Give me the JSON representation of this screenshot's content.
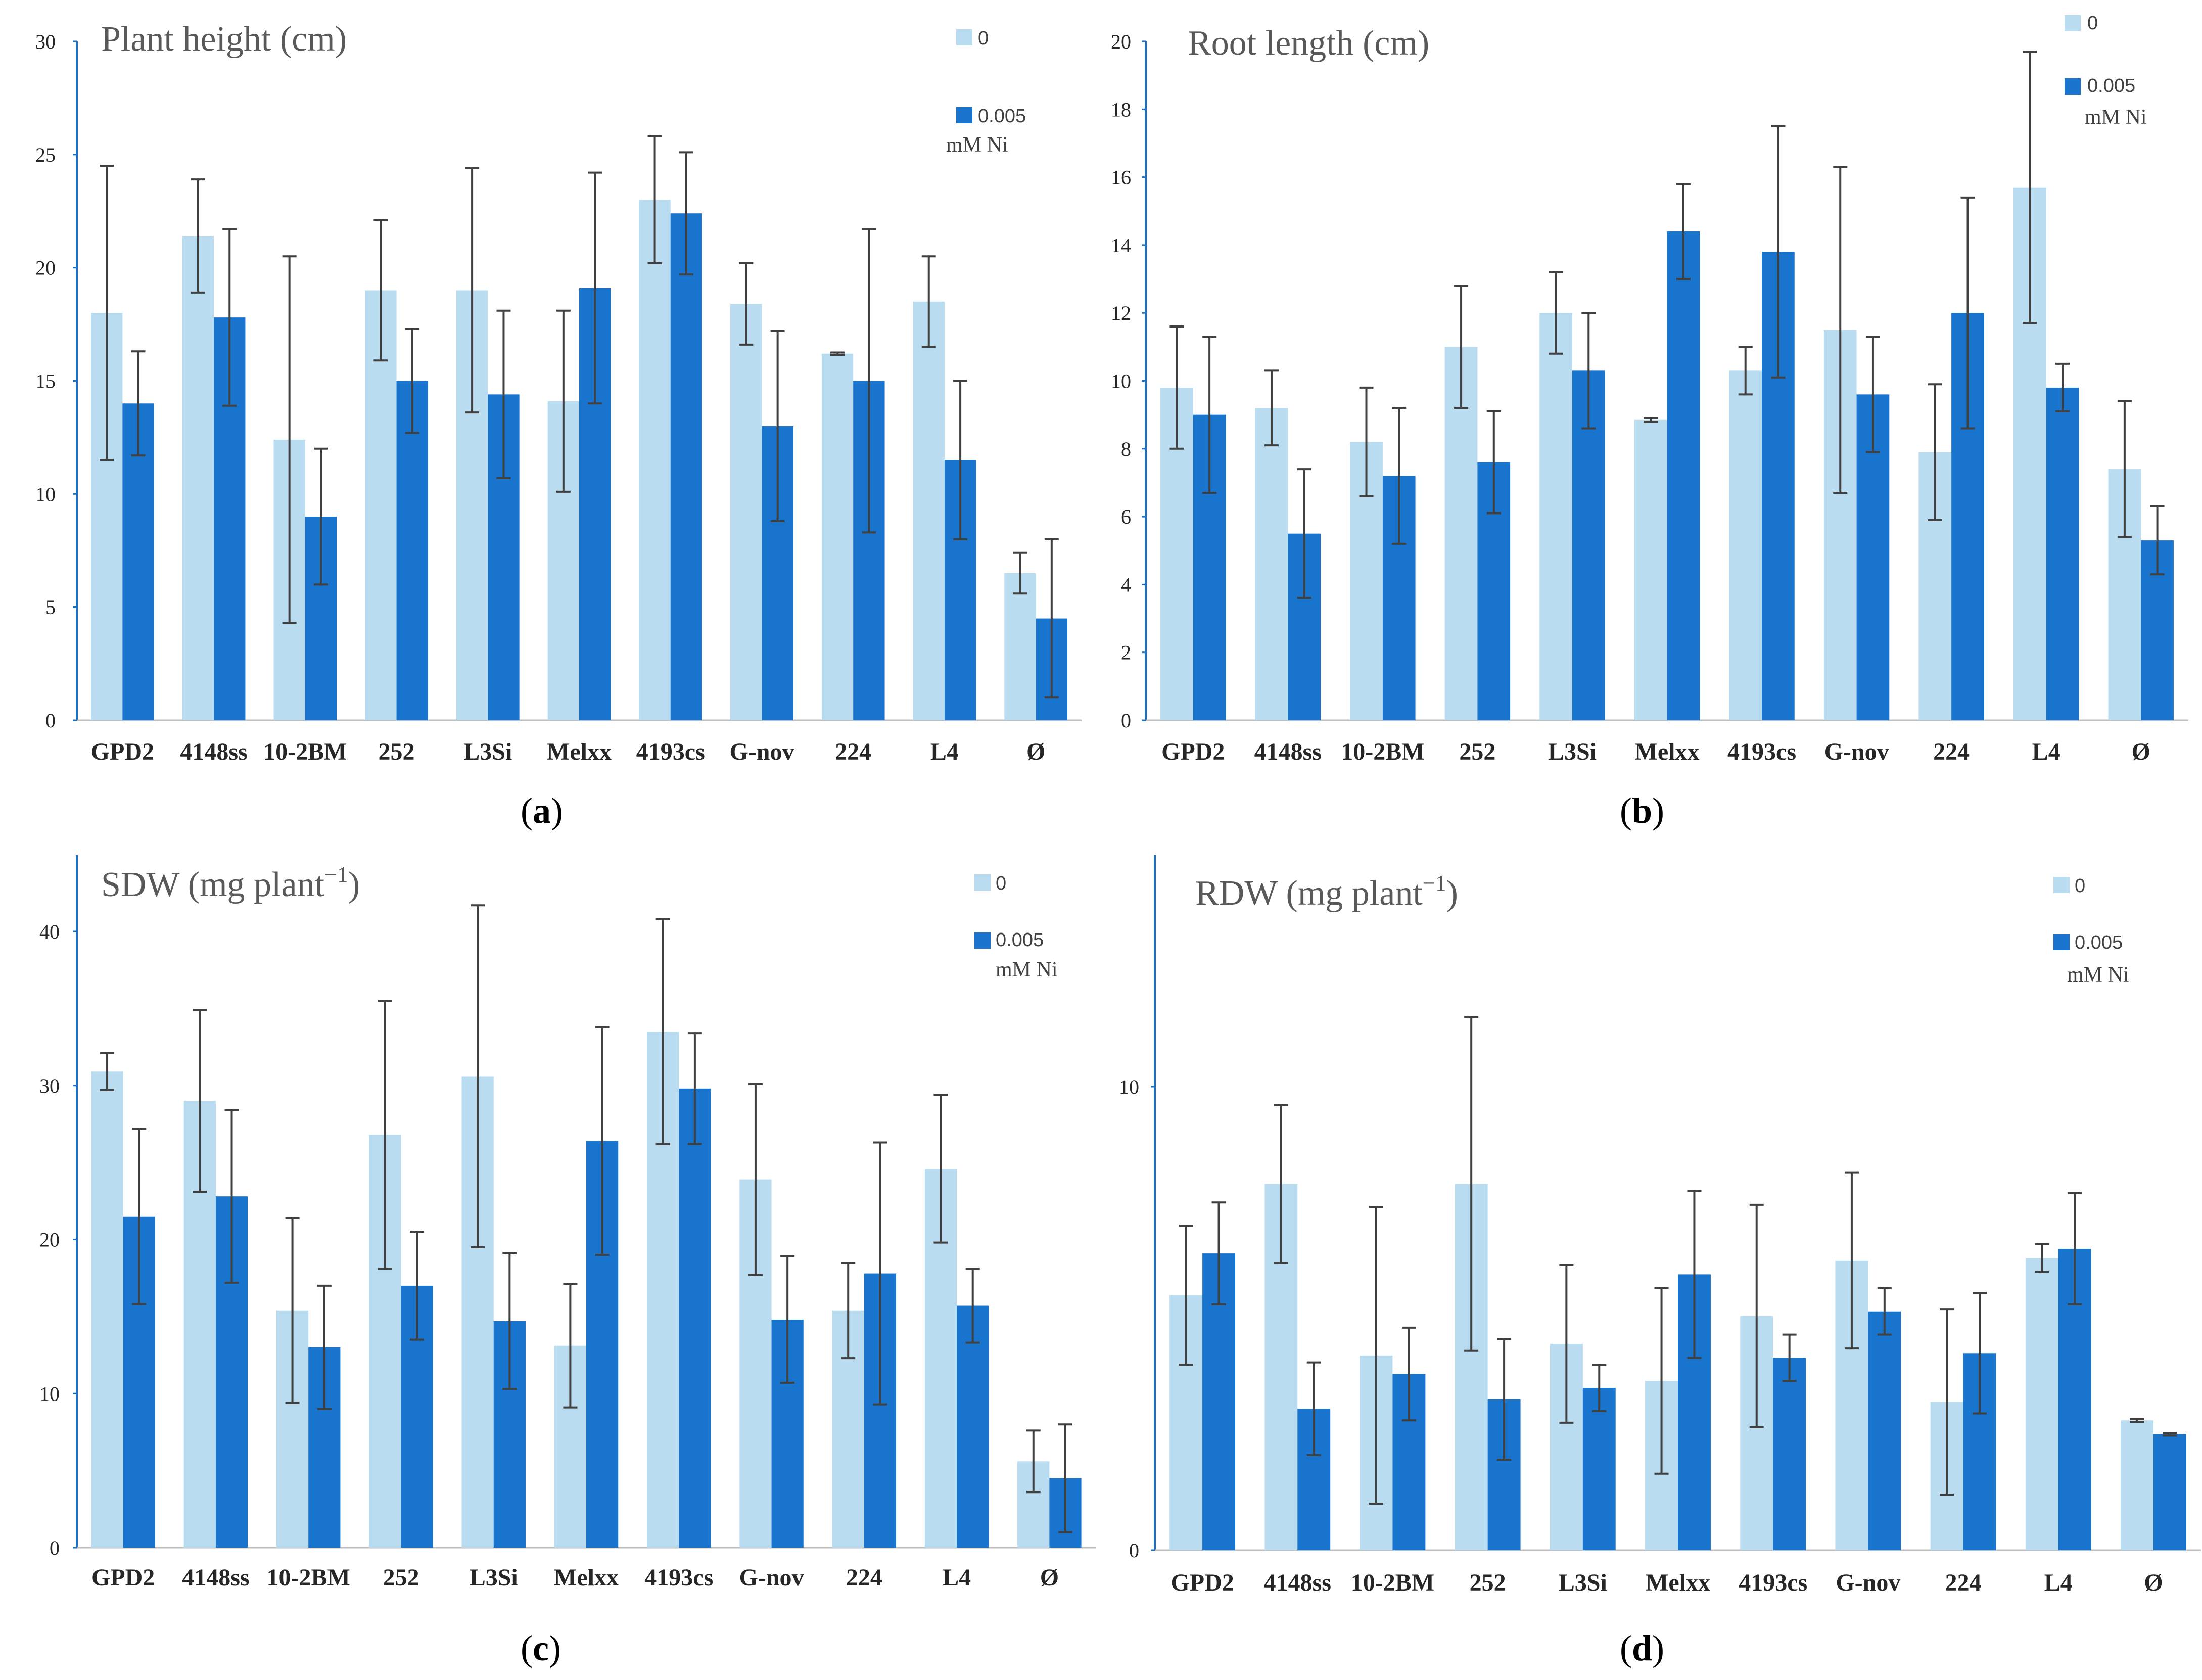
{
  "chart_data": [
    {
      "panel": "(a)",
      "panel_letter": "a",
      "type": "bar",
      "title": "Plant height (cm)",
      "categories": [
        "GPD2",
        "4148ss",
        "10-2BM",
        "252",
        "L3Si",
        "Melxx",
        "4193cs",
        "G-nov",
        "224",
        "L4",
        "Ø"
      ],
      "series": [
        {
          "name": "0",
          "color": "#b9dcf1",
          "values": [
            18.0,
            21.4,
            12.4,
            19.0,
            19.0,
            14.1,
            23.0,
            18.4,
            16.2,
            18.5,
            6.5
          ],
          "errors": [
            6.5,
            2.5,
            8.1,
            3.1,
            5.4,
            4.0,
            2.8,
            1.8,
            0.05,
            2.0,
            0.9
          ]
        },
        {
          "name": "0.005 mM Ni",
          "color": "#1874cd",
          "values": [
            14.0,
            17.8,
            9.0,
            15.0,
            14.4,
            19.1,
            22.4,
            13.0,
            15.0,
            11.5,
            4.5
          ],
          "errors": [
            2.3,
            3.9,
            3.0,
            2.3,
            3.7,
            5.1,
            2.7,
            4.2,
            6.7,
            3.5,
            3.5
          ]
        }
      ],
      "ylim": [
        0,
        30
      ],
      "yticks": [
        "0",
        "5",
        "10",
        "15",
        "20",
        "25",
        "30"
      ],
      "legend": [
        "0",
        "0.005",
        "mM Ni"
      ]
    },
    {
      "panel": "(b)",
      "panel_letter": "b",
      "type": "bar",
      "title": "Root length (cm)",
      "categories": [
        "GPD2",
        "4148ss",
        "10-2BM",
        "252",
        "L3Si",
        "Melxx",
        "4193cs",
        "G-nov",
        "224",
        "L4",
        "Ø"
      ],
      "series": [
        {
          "name": "0",
          "color": "#b9dcf1",
          "values": [
            9.8,
            9.2,
            8.2,
            11.0,
            12.0,
            8.85,
            10.3,
            11.5,
            7.9,
            15.7,
            7.4
          ],
          "errors": [
            1.8,
            1.1,
            1.6,
            1.8,
            1.2,
            0.05,
            0.7,
            4.8,
            2.0,
            4.0,
            2.0
          ]
        },
        {
          "name": "0.005 mM Ni",
          "color": "#1874cd",
          "values": [
            9.0,
            5.5,
            7.2,
            7.6,
            10.3,
            14.4,
            13.8,
            9.6,
            12.0,
            9.8,
            5.3
          ],
          "errors": [
            2.3,
            1.9,
            2.0,
            1.5,
            1.7,
            1.4,
            3.7,
            1.7,
            3.4,
            0.7,
            1.0
          ]
        }
      ],
      "ylim": [
        0,
        20
      ],
      "yticks": [
        "0",
        "2",
        "4",
        "6",
        "8",
        "10",
        "12",
        "14",
        "16",
        "18",
        "20"
      ],
      "legend": [
        "0",
        "0.005",
        "mM Ni"
      ]
    },
    {
      "panel": "(c)",
      "panel_letter": "c",
      "type": "bar",
      "title_text": "SDW (mg plant",
      "title_sup": "−1",
      "title_close": ")",
      "categories": [
        "GPD2",
        "4148ss",
        "10-2BM",
        "252",
        "L3Si",
        "Melxx",
        "4193cs",
        "G-nov",
        "224",
        "L4",
        "Ø"
      ],
      "series": [
        {
          "name": "0",
          "color": "#b9dcf1",
          "values": [
            30.9,
            29.0,
            15.4,
            26.8,
            30.6,
            13.1,
            33.5,
            23.9,
            15.4,
            24.6,
            5.6
          ],
          "errors": [
            1.2,
            5.9,
            6.0,
            8.7,
            11.1,
            4.0,
            7.3,
            6.2,
            3.1,
            4.8,
            2.0
          ]
        },
        {
          "name": "0.005 mM Ni",
          "color": "#1874cd",
          "values": [
            21.5,
            22.8,
            13.0,
            17.0,
            14.7,
            26.4,
            29.8,
            14.8,
            17.8,
            15.7,
            4.5
          ],
          "errors": [
            5.7,
            5.6,
            4.0,
            3.5,
            4.4,
            7.4,
            3.6,
            4.1,
            8.5,
            2.4,
            3.5
          ]
        }
      ],
      "ylim": [
        0,
        45
      ],
      "yticks": [
        "0",
        "10",
        "20",
        "30",
        "40"
      ],
      "legend": [
        "0",
        "0.005",
        "mM Ni"
      ]
    },
    {
      "panel": "(d)",
      "panel_letter": "d",
      "type": "bar",
      "title_text": "RDW (mg plant",
      "title_sup": "−1",
      "title_close": ")",
      "categories": [
        "GPD2",
        "4148ss",
        "10-2BM",
        "252",
        "L3Si",
        "Melxx",
        "4193cs",
        "G-nov",
        "224",
        "L4",
        "Ø"
      ],
      "series": [
        {
          "name": "0",
          "color": "#b9dcf1",
          "values": [
            5.5,
            7.9,
            4.2,
            7.9,
            4.45,
            3.65,
            5.05,
            6.25,
            3.2,
            6.3,
            2.8
          ],
          "errors": [
            1.5,
            1.7,
            3.2,
            3.6,
            1.7,
            2.0,
            2.4,
            1.9,
            2.0,
            0.3,
            0.03
          ]
        },
        {
          "name": "0.005 mM Ni",
          "color": "#1874cd",
          "values": [
            6.4,
            3.05,
            3.8,
            3.25,
            3.5,
            5.95,
            4.15,
            5.15,
            4.25,
            6.5,
            2.5
          ],
          "errors": [
            1.1,
            1.0,
            1.0,
            1.3,
            0.5,
            1.8,
            0.5,
            0.5,
            1.3,
            1.2,
            0.03
          ]
        }
      ],
      "ylim": [
        0,
        15
      ],
      "yticks": [
        "0",
        "10"
      ],
      "legend": [
        "0",
        "0.005",
        "mM Ni"
      ]
    }
  ]
}
